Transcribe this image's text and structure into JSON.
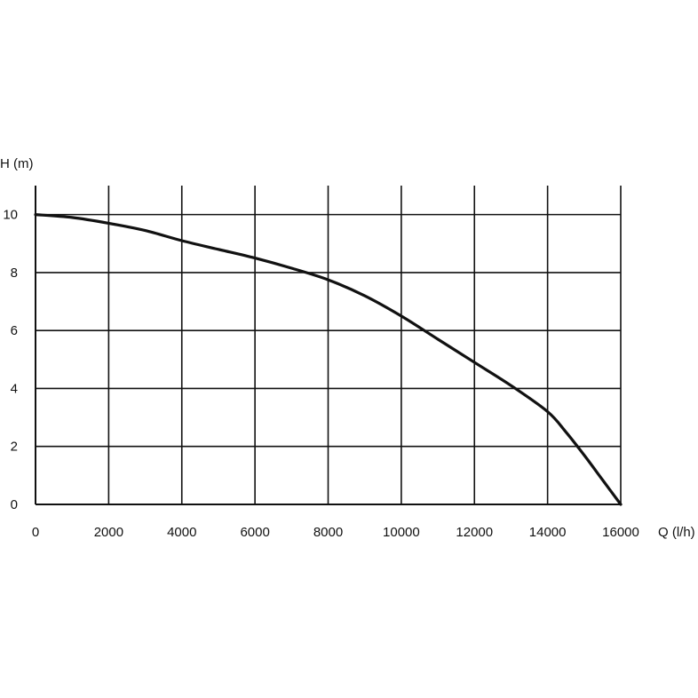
{
  "chart_data": {
    "type": "line",
    "xlabel": "Q (l/h)",
    "ylabel": "H (m)",
    "xlim": [
      0,
      16000
    ],
    "ylim": [
      0,
      11
    ],
    "x_ticks": [
      0,
      2000,
      4000,
      6000,
      8000,
      10000,
      12000,
      14000,
      16000
    ],
    "y_ticks": [
      0,
      2,
      4,
      6,
      8,
      10
    ],
    "grid": true,
    "legend": "none",
    "line_color": "#111111",
    "series": [
      {
        "x": [
          0,
          1000,
          2000,
          3000,
          4000,
          5000,
          6000,
          7000,
          8000,
          9000,
          10000,
          11000,
          12000,
          13000,
          14000,
          14500,
          15000,
          15500,
          16000
        ],
        "y": [
          10.0,
          9.9,
          9.7,
          9.45,
          9.1,
          8.8,
          8.5,
          8.15,
          7.75,
          7.2,
          6.5,
          5.7,
          4.9,
          4.1,
          3.2,
          2.5,
          1.7,
          0.85,
          0.0
        ]
      }
    ]
  }
}
